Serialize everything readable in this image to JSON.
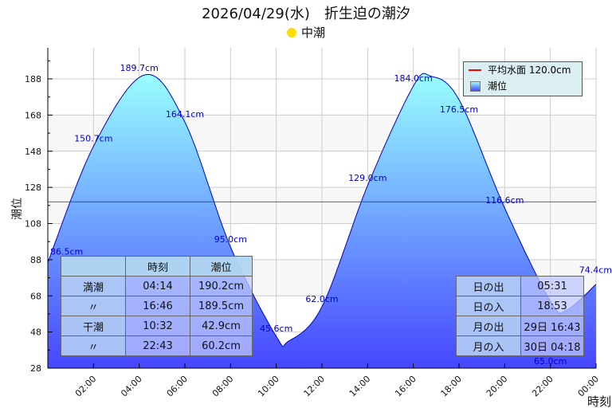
{
  "title": "2026/04/29(水)　折生迫の潮汐",
  "tide_type": "中潮",
  "legend": {
    "mean_label": "平均水面 120.0cm",
    "tide_label": "潮位"
  },
  "high_low_table": {
    "headers": [
      "",
      "時刻",
      "潮位"
    ],
    "rows": [
      [
        "満潮",
        "04:14",
        "190.2cm"
      ],
      [
        "〃",
        "16:46",
        "189.5cm"
      ],
      [
        "干潮",
        "10:32",
        "42.9cm"
      ],
      [
        "〃",
        "22:43",
        "60.2cm"
      ]
    ]
  },
  "sun_moon_table": {
    "rows": [
      [
        "日の出",
        "05:31"
      ],
      [
        "日の入",
        "18:53"
      ],
      [
        "月の出",
        "29日 16:43"
      ],
      [
        "月の入",
        "30日 04:18"
      ]
    ]
  },
  "chart_data": {
    "type": "area",
    "title": "2026/04/29(水)　折生迫の潮汐",
    "xlabel": "時刻",
    "ylabel": "潮位",
    "xlim": [
      0,
      24
    ],
    "ylim": [
      28,
      208
    ],
    "yticks": [
      28,
      48,
      68,
      88,
      108,
      128,
      148,
      168,
      188
    ],
    "xticks": [
      "02:00",
      "04:00",
      "06:00",
      "08:00",
      "10:00",
      "12:00",
      "14:00",
      "16:00",
      "18:00",
      "20:00",
      "22:00",
      "00:00"
    ],
    "mean_level": 120.0,
    "points": [
      {
        "x": 0,
        "y": 86.5
      },
      {
        "x": 2,
        "y": 150.7
      },
      {
        "x": 4.233,
        "y": 190.2
      },
      {
        "x": 6,
        "y": 164.1
      },
      {
        "x": 8,
        "y": 95.0
      },
      {
        "x": 10,
        "y": 45.6
      },
      {
        "x": 10.533,
        "y": 42.9
      },
      {
        "x": 12,
        "y": 62.0
      },
      {
        "x": 14,
        "y": 129.0
      },
      {
        "x": 16,
        "y": 184.0
      },
      {
        "x": 16.767,
        "y": 189.5
      },
      {
        "x": 18,
        "y": 176.5
      },
      {
        "x": 20,
        "y": 116.6
      },
      {
        "x": 22,
        "y": 65.0
      },
      {
        "x": 22.717,
        "y": 60.2
      },
      {
        "x": 24,
        "y": 74.4
      }
    ],
    "labels": [
      {
        "x": 0,
        "y": 86.5,
        "text": "86.5cm"
      },
      {
        "x": 2,
        "y": 150.7,
        "text": "150.7cm"
      },
      {
        "x": 4,
        "y": 189.7,
        "text": "189.7cm"
      },
      {
        "x": 6,
        "y": 164.1,
        "text": "164.1cm"
      },
      {
        "x": 8,
        "y": 95.0,
        "text": "95.0cm"
      },
      {
        "x": 10,
        "y": 45.6,
        "text": "45.6cm"
      },
      {
        "x": 12,
        "y": 62.0,
        "text": "62.0cm"
      },
      {
        "x": 14,
        "y": 129.0,
        "text": "129.0cm"
      },
      {
        "x": 16,
        "y": 184.0,
        "text": "184.0cm"
      },
      {
        "x": 18,
        "y": 176.5,
        "text": "176.5cm"
      },
      {
        "x": 20,
        "y": 116.6,
        "text": "116.6cm"
      },
      {
        "x": 22,
        "y": 65.0,
        "text": "65.0cm"
      },
      {
        "x": 24,
        "y": 74.4,
        "text": "74.4cm"
      }
    ]
  }
}
